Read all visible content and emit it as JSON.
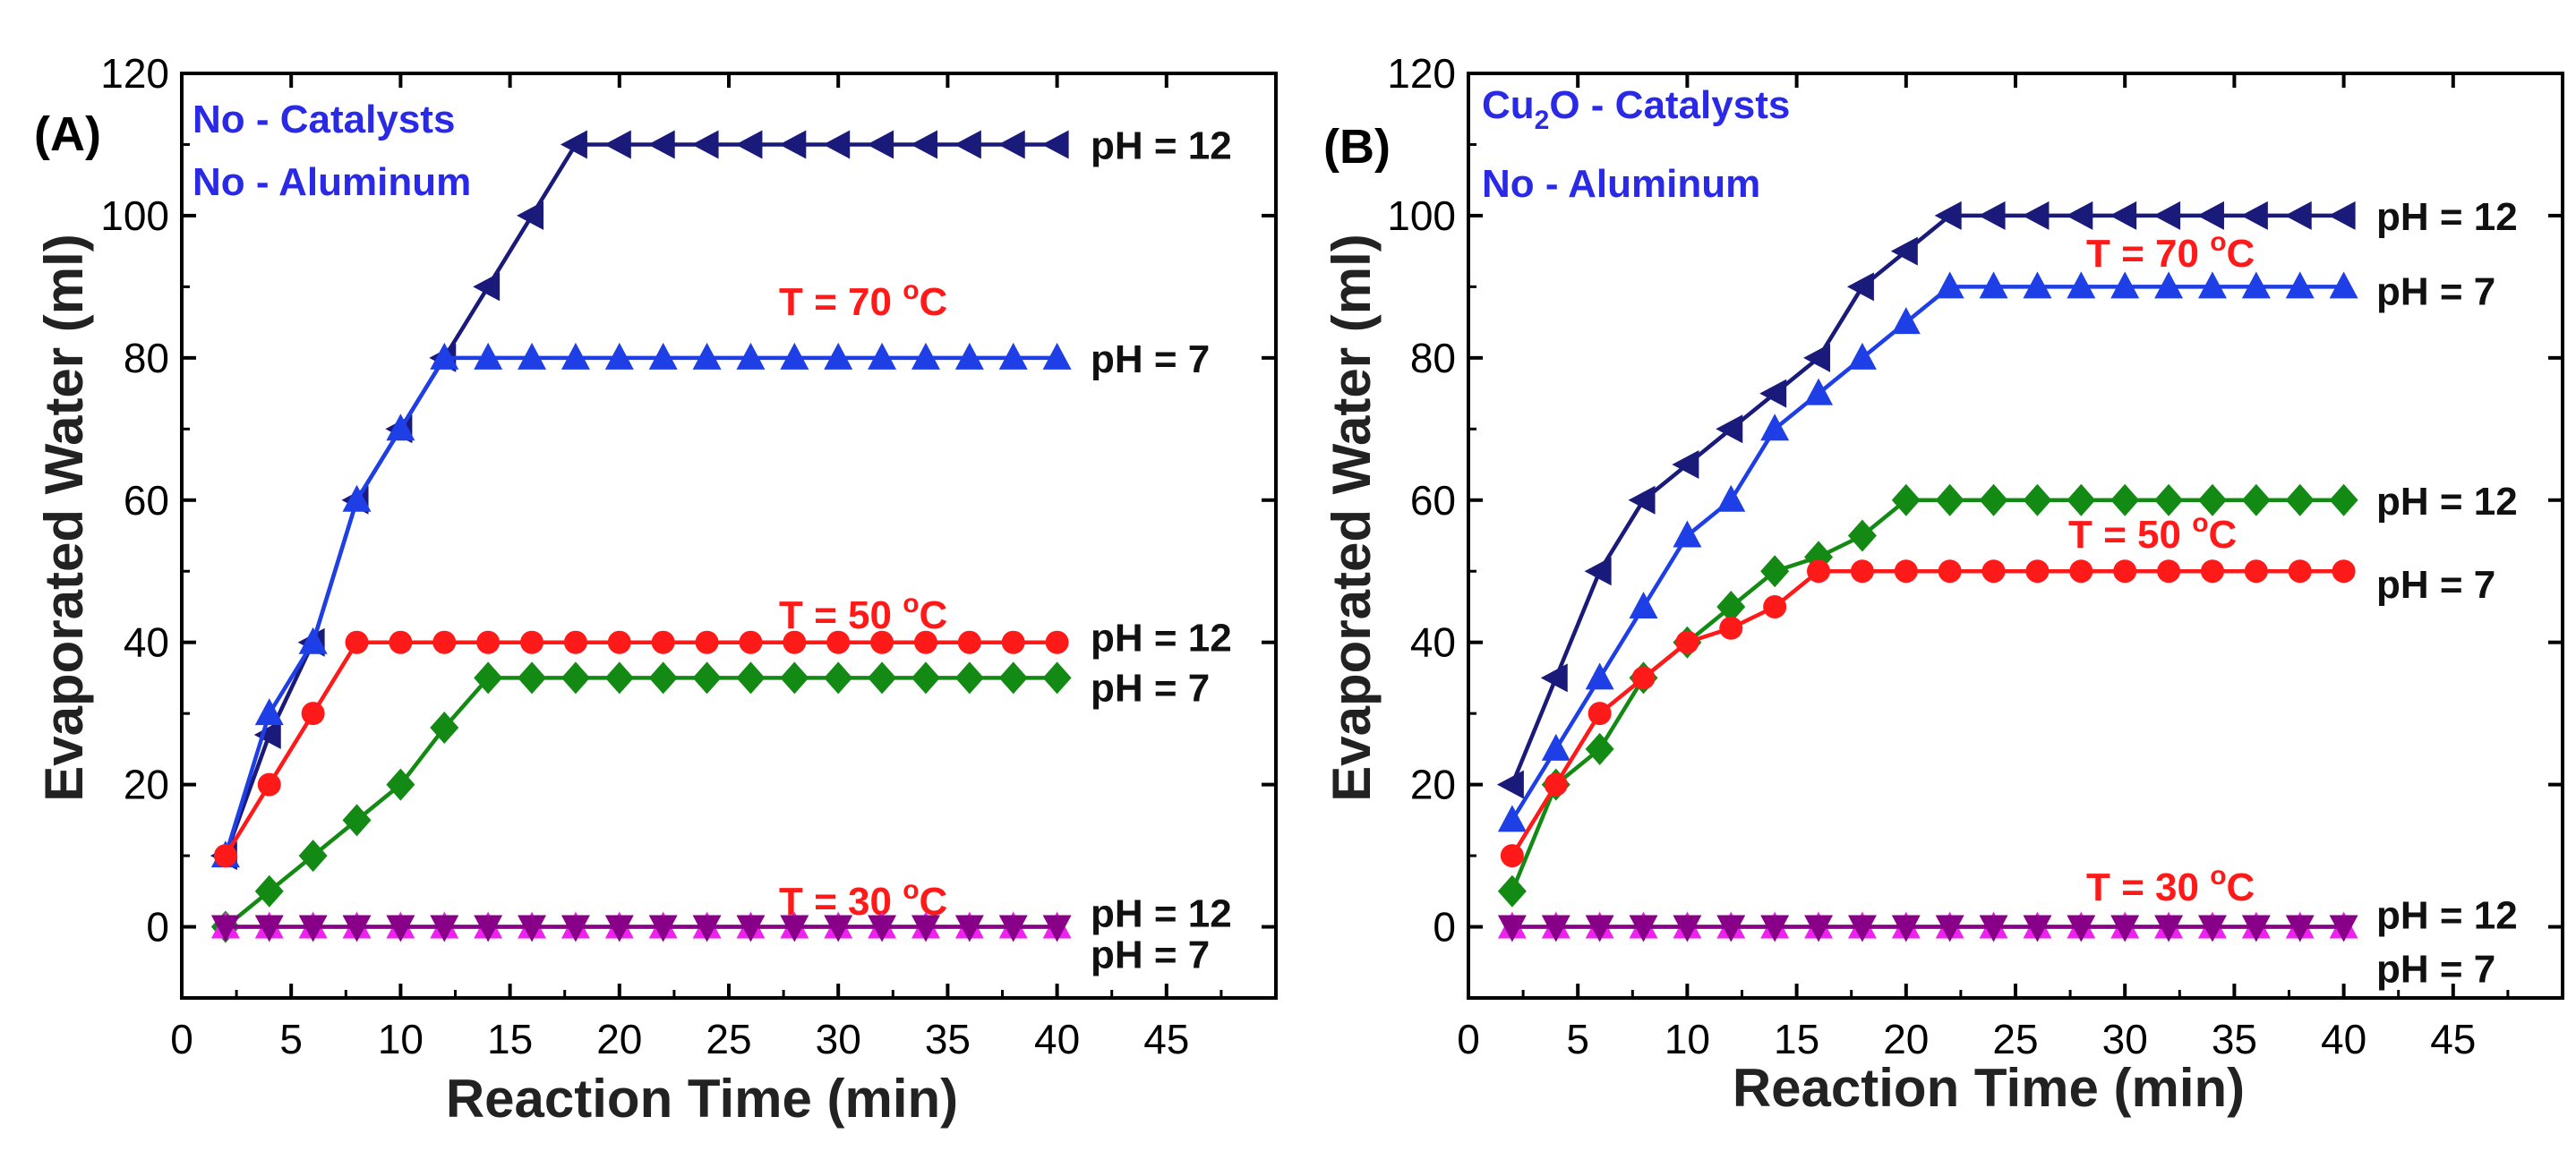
{
  "chart_data": [
    {
      "type": "line",
      "panel_label": "(A)",
      "xlabel": "Reaction Time (min)",
      "ylabel": "Evaporated Water (ml)",
      "xlim": [
        0,
        50
      ],
      "ylim": [
        -10,
        120
      ],
      "xticks": [
        0,
        5,
        10,
        15,
        20,
        25,
        30,
        35,
        40,
        45
      ],
      "yticks": [
        0,
        20,
        40,
        60,
        80,
        100,
        120
      ],
      "annotations": [
        {
          "id": "cat",
          "lines": [
            {
              "text": "No - Catalysts"
            }
          ],
          "color": "#2a2ae6"
        },
        {
          "id": "al",
          "lines": [
            {
              "text": "No - Aluminum"
            }
          ],
          "color": "#2a2ae6"
        },
        {
          "id": "t70",
          "lines": [
            {
              "text": "T = 70 "
            },
            {
              "text": "o",
              "sup": true
            },
            {
              "text": "C"
            }
          ],
          "color": "#ff1a1a"
        },
        {
          "id": "t50",
          "lines": [
            {
              "text": "T = 50 "
            },
            {
              "text": "o",
              "sup": true
            },
            {
              "text": "C"
            }
          ],
          "color": "#ff1a1a"
        },
        {
          "id": "t30",
          "lines": [
            {
              "text": "T = 30 "
            },
            {
              "text": "o",
              "sup": true
            },
            {
              "text": "C"
            }
          ],
          "color": "#ff1a1a"
        }
      ],
      "series": [
        {
          "name": "T = 70 °C, pH = 12",
          "label": "pH = 12",
          "color": "#1a1a7a",
          "marker": "triangle-left",
          "x": [
            2,
            4,
            6,
            8,
            10,
            12,
            14,
            16,
            18,
            20,
            22,
            24,
            26,
            28,
            30,
            32,
            34,
            36,
            38,
            40
          ],
          "y": [
            10,
            27,
            40,
            60,
            70,
            80,
            90,
            100,
            110,
            110,
            110,
            110,
            110,
            110,
            110,
            110,
            110,
            110,
            110,
            110
          ]
        },
        {
          "name": "T = 70 °C, pH = 7",
          "label": "pH = 7",
          "color": "#1f3fe6",
          "marker": "triangle-up",
          "x": [
            2,
            4,
            6,
            8,
            10,
            12,
            14,
            16,
            18,
            20,
            22,
            24,
            26,
            28,
            30,
            32,
            34,
            36,
            38,
            40
          ],
          "y": [
            10,
            30,
            40,
            60,
            70,
            80,
            80,
            80,
            80,
            80,
            80,
            80,
            80,
            80,
            80,
            80,
            80,
            80,
            80,
            80
          ]
        },
        {
          "name": "T = 50 °C, pH = 12",
          "label": "pH = 12",
          "color": "#ff1a1a",
          "marker": "circle",
          "x": [
            2,
            4,
            6,
            8,
            10,
            12,
            14,
            16,
            18,
            20,
            22,
            24,
            26,
            28,
            30,
            32,
            34,
            36,
            38,
            40
          ],
          "y": [
            10,
            20,
            30,
            40,
            40,
            40,
            40,
            40,
            40,
            40,
            40,
            40,
            40,
            40,
            40,
            40,
            40,
            40,
            40,
            40
          ]
        },
        {
          "name": "T = 50 °C, pH = 7",
          "label": "pH = 7",
          "color": "#138a13",
          "marker": "diamond",
          "x": [
            2,
            4,
            6,
            8,
            10,
            12,
            14,
            16,
            18,
            20,
            22,
            24,
            26,
            28,
            30,
            32,
            34,
            36,
            38,
            40
          ],
          "y": [
            0,
            5,
            10,
            15,
            20,
            28,
            35,
            35,
            35,
            35,
            35,
            35,
            35,
            35,
            35,
            35,
            35,
            35,
            35,
            35
          ]
        },
        {
          "name": "T = 30 °C, pH = 12",
          "label": "pH = 12",
          "color": "#ee22ee",
          "marker": "triangle-up",
          "x": [
            2,
            4,
            6,
            8,
            10,
            12,
            14,
            16,
            18,
            20,
            22,
            24,
            26,
            28,
            30,
            32,
            34,
            36,
            38,
            40
          ],
          "y": [
            0,
            0,
            0,
            0,
            0,
            0,
            0,
            0,
            0,
            0,
            0,
            0,
            0,
            0,
            0,
            0,
            0,
            0,
            0,
            0
          ]
        },
        {
          "name": "T = 30 °C, pH = 7",
          "label": "pH = 7",
          "color": "#880088",
          "marker": "triangle-down",
          "x": [
            2,
            4,
            6,
            8,
            10,
            12,
            14,
            16,
            18,
            20,
            22,
            24,
            26,
            28,
            30,
            32,
            34,
            36,
            38,
            40
          ],
          "y": [
            0,
            0,
            0,
            0,
            0,
            0,
            0,
            0,
            0,
            0,
            0,
            0,
            0,
            0,
            0,
            0,
            0,
            0,
            0,
            0
          ]
        }
      ]
    },
    {
      "type": "line",
      "panel_label": "(B)",
      "xlabel": "Reaction Time (min)",
      "ylabel": "Evaporated Water (ml)",
      "xlim": [
        0,
        50
      ],
      "ylim": [
        -10,
        120
      ],
      "xticks": [
        0,
        5,
        10,
        15,
        20,
        25,
        30,
        35,
        40,
        45
      ],
      "yticks": [
        0,
        20,
        40,
        60,
        80,
        100,
        120
      ],
      "annotations": [
        {
          "id": "cat",
          "lines": [
            {
              "text": "Cu"
            },
            {
              "text": "2",
              "sub": true
            },
            {
              "text": "O - Catalysts"
            }
          ],
          "color": "#2a2ae6"
        },
        {
          "id": "al",
          "lines": [
            {
              "text": "No - Aluminum"
            }
          ],
          "color": "#2a2ae6"
        },
        {
          "id": "t70",
          "lines": [
            {
              "text": "T = 70 "
            },
            {
              "text": "o",
              "sup": true
            },
            {
              "text": "C"
            }
          ],
          "color": "#ff1a1a"
        },
        {
          "id": "t50",
          "lines": [
            {
              "text": "T = 50 "
            },
            {
              "text": "o",
              "sup": true
            },
            {
              "text": "C"
            }
          ],
          "color": "#ff1a1a"
        },
        {
          "id": "t30",
          "lines": [
            {
              "text": "T = 30 "
            },
            {
              "text": "o",
              "sup": true
            },
            {
              "text": "C"
            }
          ],
          "color": "#ff1a1a"
        }
      ],
      "series": [
        {
          "name": "T = 70 °C, pH = 12",
          "label": "pH = 12",
          "color": "#1a1a7a",
          "marker": "triangle-left",
          "x": [
            2,
            4,
            6,
            8,
            10,
            12,
            14,
            16,
            18,
            20,
            22,
            24,
            26,
            28,
            30,
            32,
            34,
            36,
            38,
            40
          ],
          "y": [
            20,
            35,
            50,
            60,
            65,
            70,
            75,
            80,
            90,
            95,
            100,
            100,
            100,
            100,
            100,
            100,
            100,
            100,
            100,
            100
          ]
        },
        {
          "name": "T = 70 °C, pH = 7",
          "label": "pH = 7",
          "color": "#1f3fe6",
          "marker": "triangle-up",
          "x": [
            2,
            4,
            6,
            8,
            10,
            12,
            14,
            16,
            18,
            20,
            22,
            24,
            26,
            28,
            30,
            32,
            34,
            36,
            38,
            40
          ],
          "y": [
            15,
            25,
            35,
            45,
            55,
            60,
            70,
            75,
            80,
            85,
            90,
            90,
            90,
            90,
            90,
            90,
            90,
            90,
            90,
            90
          ]
        },
        {
          "name": "T = 50 °C, pH = 12",
          "label": "pH = 12",
          "color": "#138a13",
          "marker": "diamond",
          "x": [
            2,
            4,
            6,
            8,
            10,
            12,
            14,
            16,
            18,
            20,
            22,
            24,
            26,
            28,
            30,
            32,
            34,
            36,
            38,
            40
          ],
          "y": [
            5,
            20,
            25,
            35,
            40,
            45,
            50,
            52,
            55,
            60,
            60,
            60,
            60,
            60,
            60,
            60,
            60,
            60,
            60,
            60
          ]
        },
        {
          "name": "T = 50 °C, pH = 7",
          "label": "pH = 7",
          "color": "#ff1a1a",
          "marker": "circle",
          "x": [
            2,
            4,
            6,
            8,
            10,
            12,
            14,
            16,
            18,
            20,
            22,
            24,
            26,
            28,
            30,
            32,
            34,
            36,
            38,
            40
          ],
          "y": [
            10,
            20,
            30,
            35,
            40,
            42,
            45,
            50,
            50,
            50,
            50,
            50,
            50,
            50,
            50,
            50,
            50,
            50,
            50,
            50
          ]
        },
        {
          "name": "T = 30 °C, pH = 12",
          "label": "pH = 12",
          "color": "#ee22ee",
          "marker": "triangle-up",
          "x": [
            2,
            4,
            6,
            8,
            10,
            12,
            14,
            16,
            18,
            20,
            22,
            24,
            26,
            28,
            30,
            32,
            34,
            36,
            38,
            40
          ],
          "y": [
            0,
            0,
            0,
            0,
            0,
            0,
            0,
            0,
            0,
            0,
            0,
            0,
            0,
            0,
            0,
            0,
            0,
            0,
            0,
            0
          ]
        },
        {
          "name": "T = 30 °C, pH = 7",
          "label": "pH = 7",
          "color": "#880088",
          "marker": "triangle-down",
          "x": [
            2,
            4,
            6,
            8,
            10,
            12,
            14,
            16,
            18,
            20,
            22,
            24,
            26,
            28,
            30,
            32,
            34,
            36,
            38,
            40
          ],
          "y": [
            0,
            0,
            0,
            0,
            0,
            0,
            0,
            0,
            0,
            0,
            0,
            0,
            0,
            0,
            0,
            0,
            0,
            0,
            0,
            0
          ]
        }
      ]
    }
  ]
}
